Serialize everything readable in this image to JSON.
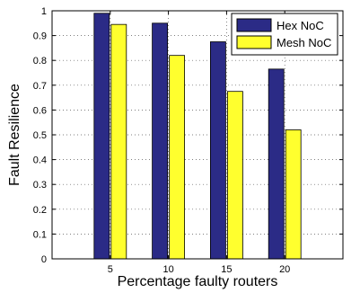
{
  "chart_data": {
    "type": "bar",
    "categories": [
      "5",
      "10",
      "15",
      "20"
    ],
    "series": [
      {
        "name": "Hex NoC",
        "values": [
          0.99,
          0.95,
          0.875,
          0.765
        ],
        "color": "#2b2b86"
      },
      {
        "name": "Mesh NoC",
        "values": [
          0.945,
          0.82,
          0.675,
          0.52
        ],
        "color": "#ffff2e"
      }
    ],
    "xlabel": "Percentage faulty routers",
    "ylabel": "Fault Resilience",
    "ylim": [
      0,
      1
    ],
    "yticks": [
      "0",
      "0.1",
      "0.2",
      "0.3",
      "0.4",
      "0.5",
      "0.6",
      "0.7",
      "0.8",
      "0.9",
      "1"
    ],
    "grid": true,
    "grid_style": "dotted",
    "legend_position": "top-right"
  }
}
